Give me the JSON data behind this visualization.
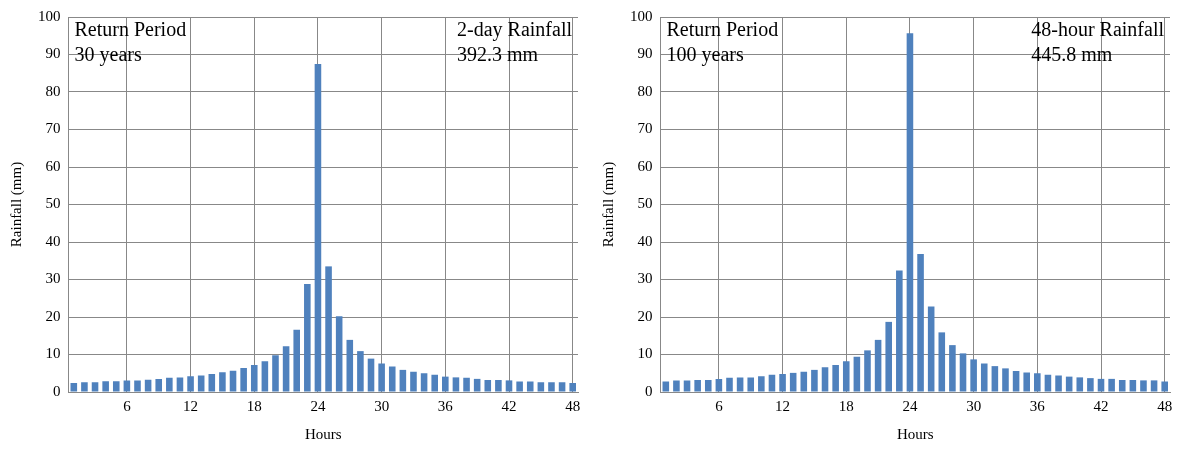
{
  "chart_data": [
    {
      "type": "bar",
      "xlabel": "Hours",
      "ylabel": "Rainfall (mm)",
      "annotations": [
        "Return Period\n30 years",
        "2-day Rainfall\n392.3 mm"
      ],
      "categories": [
        null,
        null,
        null,
        null,
        null,
        "6",
        null,
        null,
        null,
        null,
        null,
        "12",
        null,
        null,
        null,
        null,
        null,
        "18",
        null,
        null,
        null,
        null,
        null,
        "24",
        null,
        null,
        null,
        null,
        null,
        "30",
        null,
        null,
        null,
        null,
        null,
        "36",
        null,
        null,
        null,
        null,
        null,
        "42",
        null,
        null,
        null,
        null,
        null,
        "48"
      ],
      "values": [
        2.4,
        2.6,
        2.6,
        2.9,
        2.9,
        3.1,
        3.1,
        3.3,
        3.5,
        3.8,
        3.9,
        4.2,
        4.4,
        4.8,
        5.3,
        5.7,
        6.4,
        7.2,
        8.2,
        9.8,
        12.2,
        16.6,
        28.8,
        87.5,
        33.5,
        20.2,
        13.9,
        10.9,
        8.9,
        7.6,
        6.8,
        5.9,
        5.4,
        5.0,
        4.6,
        4.1,
        3.9,
        3.8,
        3.5,
        3.2,
        3.2,
        3.1,
        2.8,
        2.8,
        2.6,
        2.6,
        2.6,
        2.4
      ],
      "color": "#4f81bd",
      "ylim": [
        0,
        100
      ],
      "yticks": [
        0,
        10,
        20,
        30,
        40,
        50,
        60,
        70,
        80,
        90,
        100
      ],
      "grid": true,
      "legend": false
    },
    {
      "type": "bar",
      "xlabel": "Hours",
      "ylabel": "Rainfall (mm)",
      "annotations": [
        "Return Period\n100 years",
        "48-hour Rainfall\n445.8 mm"
      ],
      "categories": [
        null,
        null,
        null,
        null,
        null,
        "6",
        null,
        null,
        null,
        null,
        null,
        "12",
        null,
        null,
        null,
        null,
        null,
        "18",
        null,
        null,
        null,
        null,
        null,
        "24",
        null,
        null,
        null,
        null,
        null,
        "30",
        null,
        null,
        null,
        null,
        null,
        "36",
        null,
        null,
        null,
        null,
        null,
        "42",
        null,
        null,
        null,
        null,
        null,
        "48"
      ],
      "values": [
        2.8,
        3.1,
        3.1,
        3.2,
        3.2,
        3.5,
        3.8,
        3.9,
        3.9,
        4.2,
        4.6,
        4.8,
        5.1,
        5.4,
        5.9,
        6.6,
        7.2,
        8.2,
        9.4,
        11.1,
        13.9,
        18.7,
        32.4,
        95.7,
        36.8,
        22.8,
        15.9,
        12.5,
        10.3,
        8.7,
        7.6,
        6.9,
        6.3,
        5.6,
        5.2,
        5.0,
        4.6,
        4.4,
        4.1,
        3.9,
        3.7,
        3.5,
        3.5,
        3.2,
        3.2,
        3.1,
        3.1,
        2.8
      ],
      "color": "#4f81bd",
      "ylim": [
        0,
        100
      ],
      "yticks": [
        0,
        10,
        20,
        30,
        40,
        50,
        60,
        70,
        80,
        90,
        100
      ],
      "grid": true,
      "legend": false
    }
  ]
}
